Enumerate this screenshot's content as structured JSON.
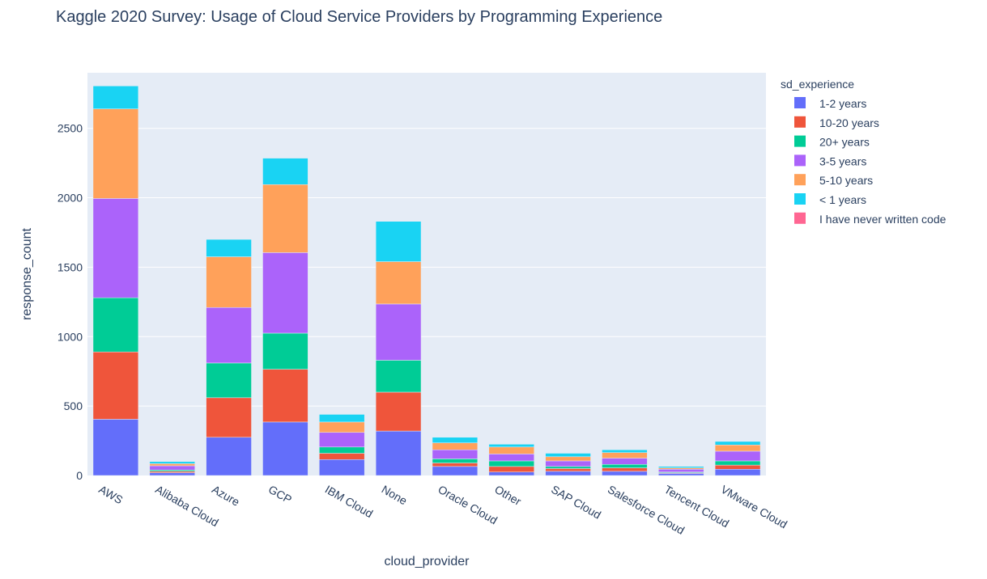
{
  "chart_data": {
    "type": "bar",
    "barmode": "stack",
    "title": "Kaggle 2020 Survey: Usage of Cloud Service Providers by Programming Experience",
    "xlabel": "cloud_provider",
    "ylabel": "response_count",
    "ylim": [
      0,
      2900
    ],
    "yticks": [
      0,
      500,
      1000,
      1500,
      2000,
      2500
    ],
    "grid": true,
    "legend_title": "sd_experience",
    "legend_placement": "right",
    "categories": [
      "AWS",
      "Alibaba Cloud",
      "Azure",
      "GCP",
      "IBM Cloud",
      "None",
      "Oracle Cloud",
      "Other",
      "SAP Cloud",
      "Salesforce Cloud",
      "Tencent Cloud",
      "VMware Cloud"
    ],
    "series": [
      {
        "name": "1-2 years",
        "color": "#636efa",
        "values": [
          405,
          20,
          275,
          385,
          115,
          320,
          65,
          25,
          30,
          30,
          15,
          45
        ]
      },
      {
        "name": "10-20 years",
        "color": "#EF553B",
        "values": [
          485,
          10,
          285,
          380,
          45,
          280,
          25,
          40,
          20,
          25,
          5,
          30
        ]
      },
      {
        "name": "20+ years",
        "color": "#00cc96",
        "values": [
          390,
          10,
          250,
          260,
          45,
          230,
          30,
          40,
          15,
          25,
          5,
          30
        ]
      },
      {
        "name": "3-5 years",
        "color": "#ab63fa",
        "values": [
          715,
          30,
          400,
          580,
          105,
          405,
          65,
          50,
          40,
          45,
          20,
          70
        ]
      },
      {
        "name": "5-10 years",
        "color": "#FFA15A",
        "values": [
          645,
          15,
          365,
          490,
          75,
          305,
          50,
          50,
          30,
          40,
          10,
          45
        ]
      },
      {
        "name": "< 1 years",
        "color": "#19d3f3",
        "values": [
          165,
          15,
          125,
          190,
          55,
          290,
          40,
          20,
          25,
          20,
          10,
          25
        ]
      },
      {
        "name": "I have never written code",
        "color": "#FF6692",
        "values": [
          0,
          0,
          0,
          0,
          0,
          0,
          0,
          0,
          0,
          0,
          0,
          0
        ]
      }
    ]
  }
}
